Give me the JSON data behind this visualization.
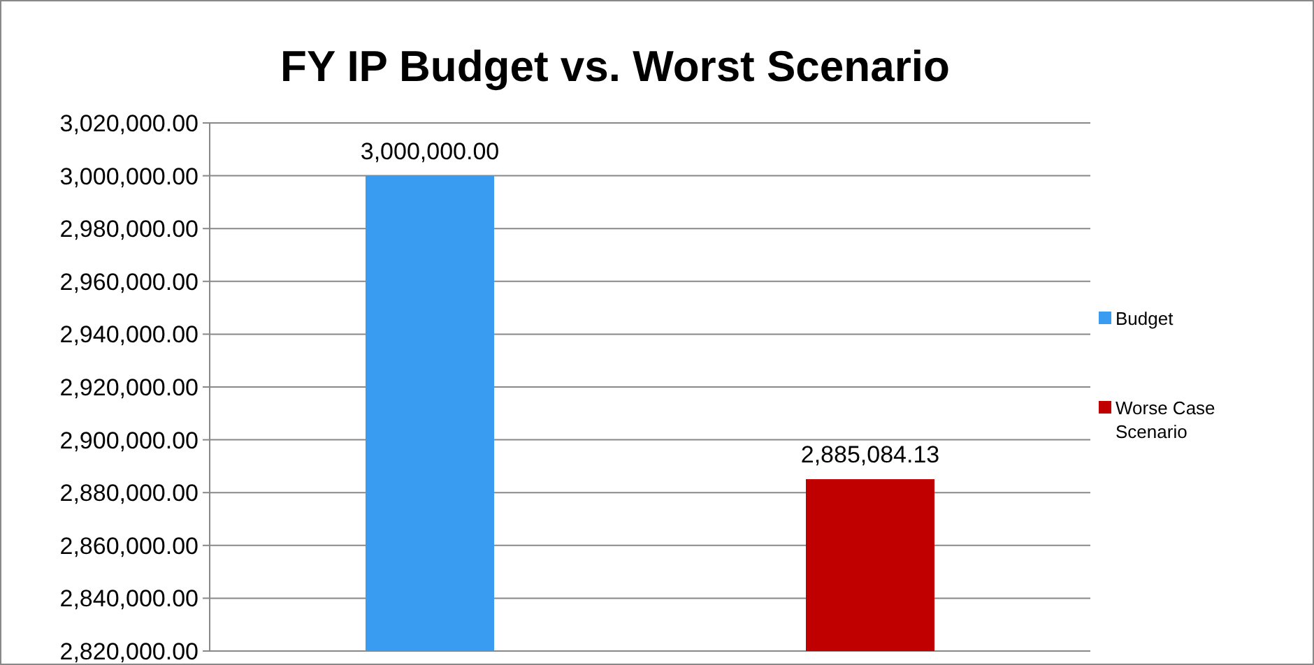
{
  "chart_data": {
    "type": "bar",
    "title": "FY IP Budget vs. Worst Scenario",
    "categories": [
      null,
      null
    ],
    "series": [
      {
        "name": "Budget",
        "color": "#3a9cf0",
        "values": [
          3000000,
          null
        ],
        "value_labels": [
          "3,000,000.00",
          null
        ]
      },
      {
        "name": "Worse Case Scenario",
        "color": "#c00000",
        "values": [
          null,
          2885084.13
        ],
        "value_labels": [
          null,
          "2,885,084.13"
        ]
      }
    ],
    "ylim": [
      2820000,
      3020000
    ],
    "yticks": [
      {
        "value": 2820000,
        "label": "2,820,000.00"
      },
      {
        "value": 2840000,
        "label": "2,840,000.00"
      },
      {
        "value": 2860000,
        "label": "2,860,000.00"
      },
      {
        "value": 2880000,
        "label": "2,880,000.00"
      },
      {
        "value": 2900000,
        "label": "2,900,000.00"
      },
      {
        "value": 2920000,
        "label": "2,920,000.00"
      },
      {
        "value": 2940000,
        "label": "2,940,000.00"
      },
      {
        "value": 2960000,
        "label": "2,960,000.00"
      },
      {
        "value": 2980000,
        "label": "2,980,000.00"
      },
      {
        "value": 3000000,
        "label": "3,000,000.00"
      },
      {
        "value": 3020000,
        "label": "3,020,000.00"
      }
    ],
    "grid": "y",
    "legend": "right"
  }
}
